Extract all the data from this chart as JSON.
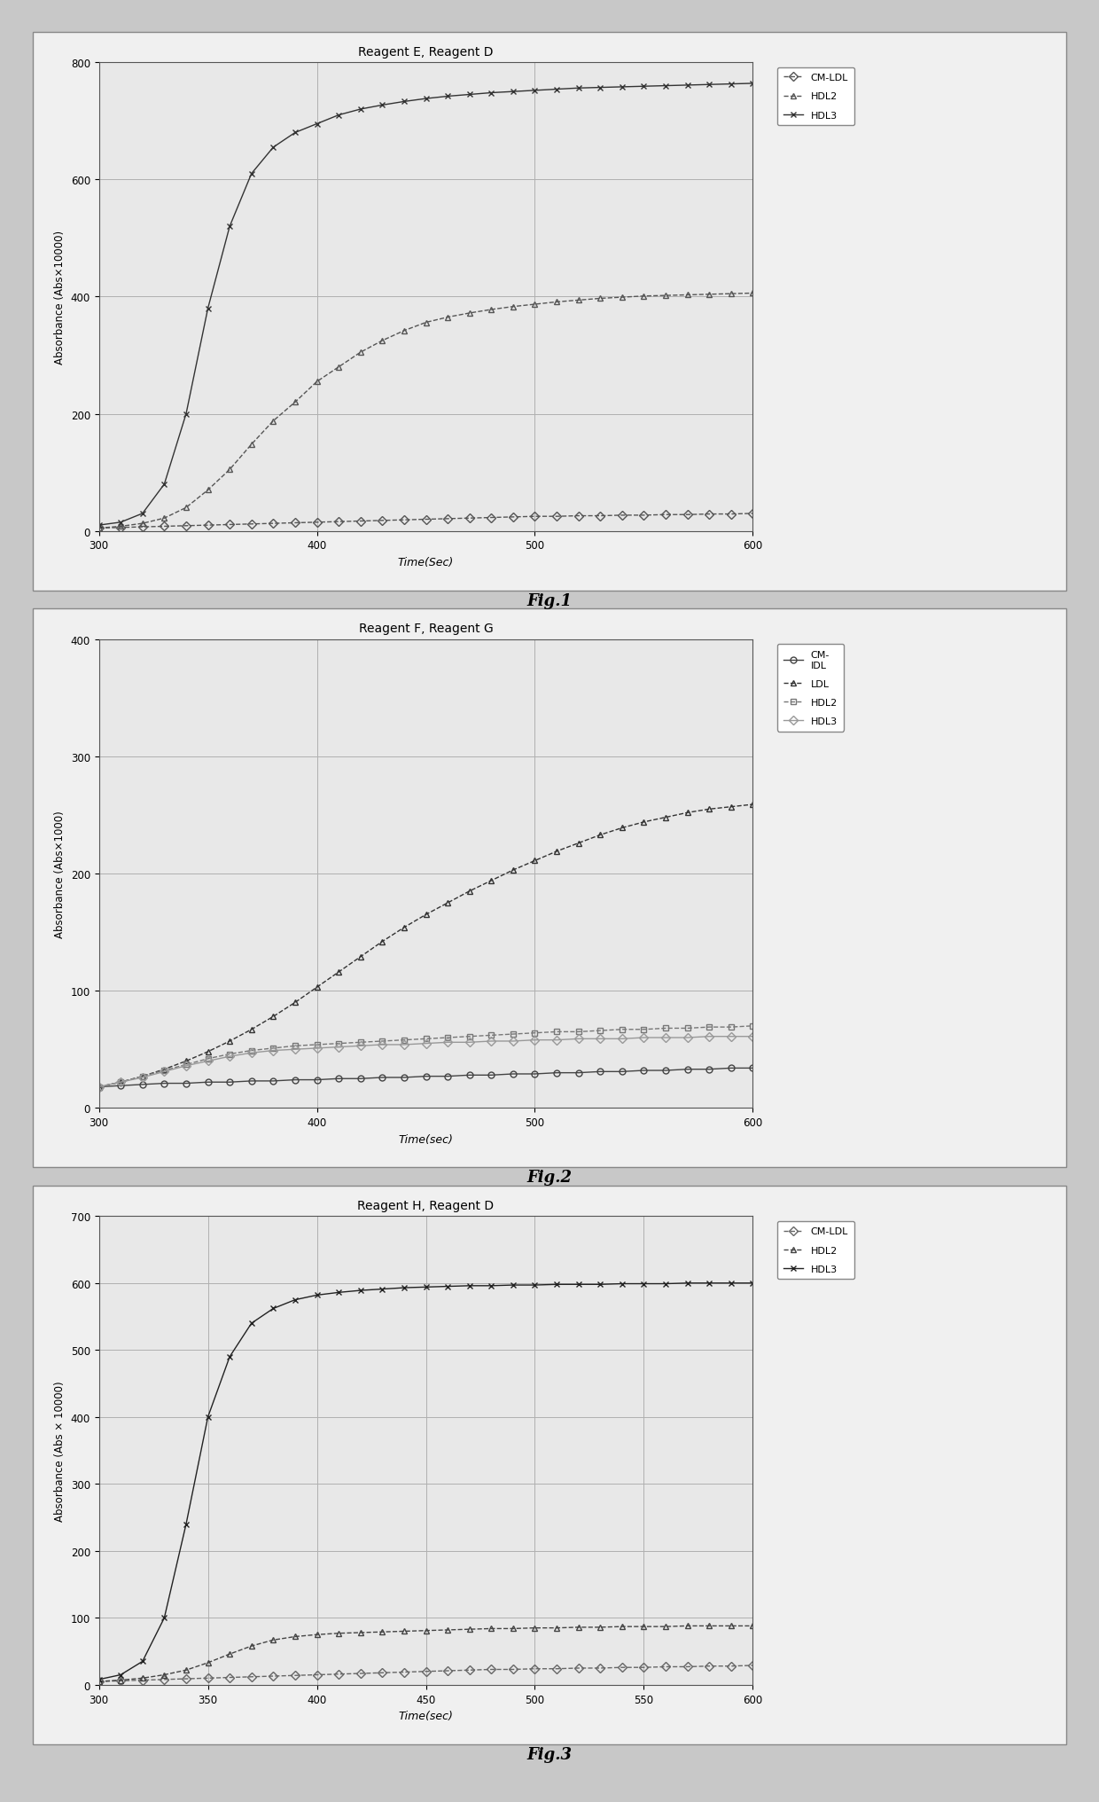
{
  "fig1": {
    "title": "Reagent E, Reagent D",
    "xlabel": "Time(Sec)",
    "ylabel": "Absorbance (Abs×10000)",
    "xlim": [
      300,
      600
    ],
    "ylim": [
      0,
      800
    ],
    "yticks": [
      0,
      200,
      400,
      600,
      800
    ],
    "xticks": [
      300,
      400,
      500,
      600
    ],
    "figcaption": "Fig.1",
    "series": {
      "CM-LDL": {
        "x": [
          300,
          310,
          320,
          330,
          340,
          350,
          360,
          370,
          380,
          390,
          400,
          410,
          420,
          430,
          440,
          450,
          460,
          470,
          480,
          490,
          500,
          510,
          520,
          530,
          540,
          550,
          560,
          570,
          580,
          590,
          600
        ],
        "y": [
          5,
          6,
          7,
          8,
          9,
          10,
          11,
          12,
          13,
          14,
          15,
          16,
          17,
          18,
          19,
          20,
          21,
          22,
          23,
          24,
          25,
          25,
          26,
          26,
          27,
          27,
          28,
          28,
          29,
          29,
          30
        ],
        "marker": "D",
        "linestyle": "--",
        "color": "#555555"
      },
      "HDL2": {
        "x": [
          300,
          310,
          320,
          330,
          340,
          350,
          360,
          370,
          380,
          390,
          400,
          410,
          420,
          430,
          440,
          450,
          460,
          470,
          480,
          490,
          500,
          510,
          520,
          530,
          540,
          550,
          560,
          570,
          580,
          590,
          600
        ],
        "y": [
          5,
          8,
          13,
          22,
          40,
          70,
          105,
          148,
          188,
          220,
          255,
          280,
          305,
          325,
          342,
          356,
          365,
          372,
          378,
          383,
          387,
          391,
          394,
          397,
          399,
          401,
          402,
          403,
          404,
          405,
          406
        ],
        "marker": "^",
        "linestyle": "--",
        "color": "#555555"
      },
      "HDL3": {
        "x": [
          300,
          310,
          320,
          330,
          340,
          350,
          360,
          370,
          380,
          390,
          400,
          410,
          420,
          430,
          440,
          450,
          460,
          470,
          480,
          490,
          500,
          510,
          520,
          530,
          540,
          550,
          560,
          570,
          580,
          590,
          600
        ],
        "y": [
          10,
          15,
          30,
          80,
          200,
          380,
          520,
          610,
          655,
          680,
          695,
          710,
          720,
          727,
          733,
          738,
          742,
          745,
          748,
          750,
          752,
          754,
          756,
          757,
          758,
          759,
          760,
          761,
          762,
          763,
          764
        ],
        "marker": "x",
        "linestyle": "-",
        "color": "#333333"
      }
    }
  },
  "fig2": {
    "title": "Reagent F, Reagent G",
    "xlabel": "Time(sec)",
    "ylabel": "Absorbance (Abs×1000)",
    "xlim": [
      300,
      600
    ],
    "ylim": [
      0,
      400
    ],
    "yticks": [
      0,
      100,
      200,
      300,
      400
    ],
    "xticks": [
      300,
      400,
      500,
      600
    ],
    "figcaption": "Fig.2",
    "series": {
      "CM-\nIDL": {
        "x": [
          300,
          310,
          320,
          330,
          340,
          350,
          360,
          370,
          380,
          390,
          400,
          410,
          420,
          430,
          440,
          450,
          460,
          470,
          480,
          490,
          500,
          510,
          520,
          530,
          540,
          550,
          560,
          570,
          580,
          590,
          600
        ],
        "y": [
          18,
          19,
          20,
          21,
          21,
          22,
          22,
          23,
          23,
          24,
          24,
          25,
          25,
          26,
          26,
          27,
          27,
          28,
          28,
          29,
          29,
          30,
          30,
          31,
          31,
          32,
          32,
          33,
          33,
          34,
          34
        ],
        "marker": "o",
        "linestyle": "-",
        "color": "#444444"
      },
      "LDL": {
        "x": [
          300,
          310,
          320,
          330,
          340,
          350,
          360,
          370,
          380,
          390,
          400,
          410,
          420,
          430,
          440,
          450,
          460,
          470,
          480,
          490,
          500,
          510,
          520,
          530,
          540,
          550,
          560,
          570,
          580,
          590,
          600
        ],
        "y": [
          18,
          22,
          27,
          33,
          40,
          48,
          57,
          67,
          78,
          90,
          103,
          116,
          129,
          142,
          154,
          165,
          175,
          185,
          194,
          203,
          211,
          219,
          226,
          233,
          239,
          244,
          248,
          252,
          255,
          257,
          259
        ],
        "marker": "^",
        "linestyle": "--",
        "color": "#333333"
      },
      "HDL2": {
        "x": [
          300,
          310,
          320,
          330,
          340,
          350,
          360,
          370,
          380,
          390,
          400,
          410,
          420,
          430,
          440,
          450,
          460,
          470,
          480,
          490,
          500,
          510,
          520,
          530,
          540,
          550,
          560,
          570,
          580,
          590,
          600
        ],
        "y": [
          18,
          22,
          27,
          32,
          37,
          42,
          46,
          49,
          51,
          53,
          54,
          55,
          56,
          57,
          58,
          59,
          60,
          61,
          62,
          63,
          64,
          65,
          65,
          66,
          67,
          67,
          68,
          68,
          69,
          69,
          70
        ],
        "marker": "s",
        "linestyle": "--",
        "color": "#777777"
      },
      "HDL3": {
        "x": [
          300,
          310,
          320,
          330,
          340,
          350,
          360,
          370,
          380,
          390,
          400,
          410,
          420,
          430,
          440,
          450,
          460,
          470,
          480,
          490,
          500,
          510,
          520,
          530,
          540,
          550,
          560,
          570,
          580,
          590,
          600
        ],
        "y": [
          18,
          22,
          26,
          31,
          36,
          40,
          44,
          47,
          49,
          50,
          51,
          52,
          53,
          54,
          54,
          55,
          56,
          56,
          57,
          57,
          58,
          58,
          59,
          59,
          59,
          60,
          60,
          60,
          61,
          61,
          61
        ],
        "marker": "D",
        "linestyle": "-",
        "color": "#999999"
      }
    }
  },
  "fig3": {
    "title": "Reagent H, Reagent D",
    "xlabel": "Time(sec)",
    "ylabel": "Absorbance (Abs × 10000)",
    "xlim": [
      300,
      600
    ],
    "ylim": [
      0,
      700
    ],
    "yticks": [
      0,
      100,
      200,
      300,
      400,
      500,
      600,
      700
    ],
    "xticks": [
      300,
      350,
      400,
      450,
      500,
      550,
      600
    ],
    "figcaption": "Fig.3",
    "series": {
      "CM-LDL": {
        "x": [
          300,
          310,
          320,
          330,
          340,
          350,
          360,
          370,
          380,
          390,
          400,
          410,
          420,
          430,
          440,
          450,
          460,
          470,
          480,
          490,
          500,
          510,
          520,
          530,
          540,
          550,
          560,
          570,
          580,
          590,
          600
        ],
        "y": [
          5,
          6,
          7,
          8,
          9,
          10,
          11,
          12,
          13,
          14,
          15,
          16,
          17,
          18,
          19,
          20,
          21,
          22,
          23,
          23,
          24,
          24,
          25,
          25,
          26,
          26,
          27,
          27,
          28,
          28,
          29
        ],
        "marker": "D",
        "linestyle": "--",
        "color": "#666666"
      },
      "HDL2": {
        "x": [
          300,
          310,
          320,
          330,
          340,
          350,
          360,
          370,
          380,
          390,
          400,
          410,
          420,
          430,
          440,
          450,
          460,
          470,
          480,
          490,
          500,
          510,
          520,
          530,
          540,
          550,
          560,
          570,
          580,
          590,
          600
        ],
        "y": [
          5,
          7,
          10,
          15,
          22,
          33,
          46,
          58,
          67,
          72,
          75,
          77,
          78,
          79,
          80,
          81,
          82,
          83,
          84,
          84,
          85,
          85,
          86,
          86,
          87,
          87,
          87,
          88,
          88,
          88,
          88
        ],
        "marker": "^",
        "linestyle": "--",
        "color": "#444444"
      },
      "HDL3": {
        "x": [
          300,
          310,
          320,
          330,
          340,
          350,
          360,
          370,
          380,
          390,
          400,
          410,
          420,
          430,
          440,
          450,
          460,
          470,
          480,
          490,
          500,
          510,
          520,
          530,
          540,
          550,
          560,
          570,
          580,
          590,
          600
        ],
        "y": [
          8,
          15,
          35,
          100,
          240,
          400,
          490,
          540,
          562,
          575,
          582,
          586,
          589,
          591,
          593,
          594,
          595,
          596,
          596,
          597,
          597,
          598,
          598,
          598,
          599,
          599,
          599,
          600,
          600,
          600,
          600
        ],
        "marker": "x",
        "linestyle": "-",
        "color": "#222222"
      }
    }
  },
  "page_bg": "#c8c8c8",
  "panel_bg": "#f0f0f0",
  "plot_bg": "#e8e8e8",
  "grid_color": "#b0b0b0"
}
